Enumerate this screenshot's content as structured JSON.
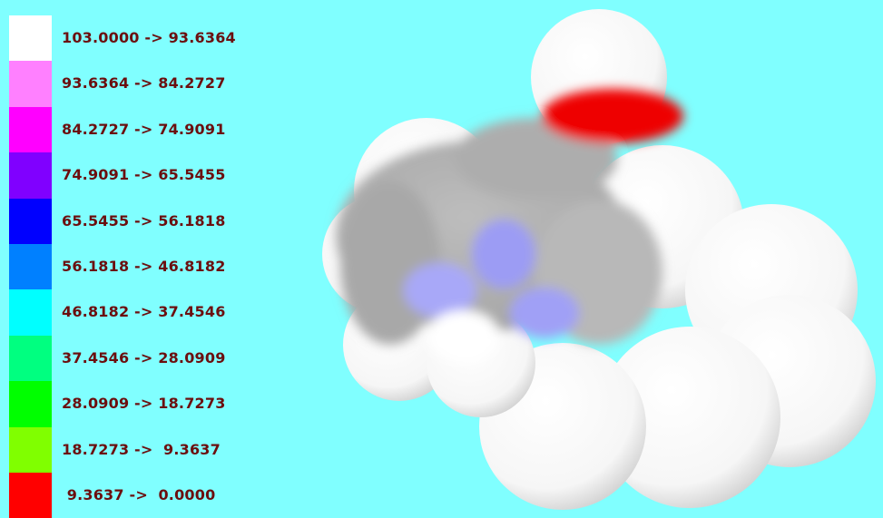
{
  "legend": {
    "entries": [
      {
        "label": "103.0000 -> 93.6364",
        "color": "#ffffff"
      },
      {
        "label": "93.6364 -> 84.2727",
        "color": "#ff80ff"
      },
      {
        "label": "84.2727 -> 74.9091",
        "color": "#ff00ff"
      },
      {
        "label": "74.9091 -> 65.5455",
        "color": "#8000ff"
      },
      {
        "label": "65.5455 -> 56.1818",
        "color": "#0000ff"
      },
      {
        "label": "56.1818 -> 46.8182",
        "color": "#0080ff"
      },
      {
        "label": "46.8182 -> 37.4546",
        "color": "#00ffff"
      },
      {
        "label": "37.4546 -> 28.0909",
        "color": "#00ff80"
      },
      {
        "label": "28.0909 -> 18.7273",
        "color": "#00ff00"
      },
      {
        "label": "18.7273 ->  9.3637",
        "color": "#80ff00"
      },
      {
        "label": " 9.3637 ->  0.0000",
        "color": "#ff0000"
      }
    ]
  }
}
